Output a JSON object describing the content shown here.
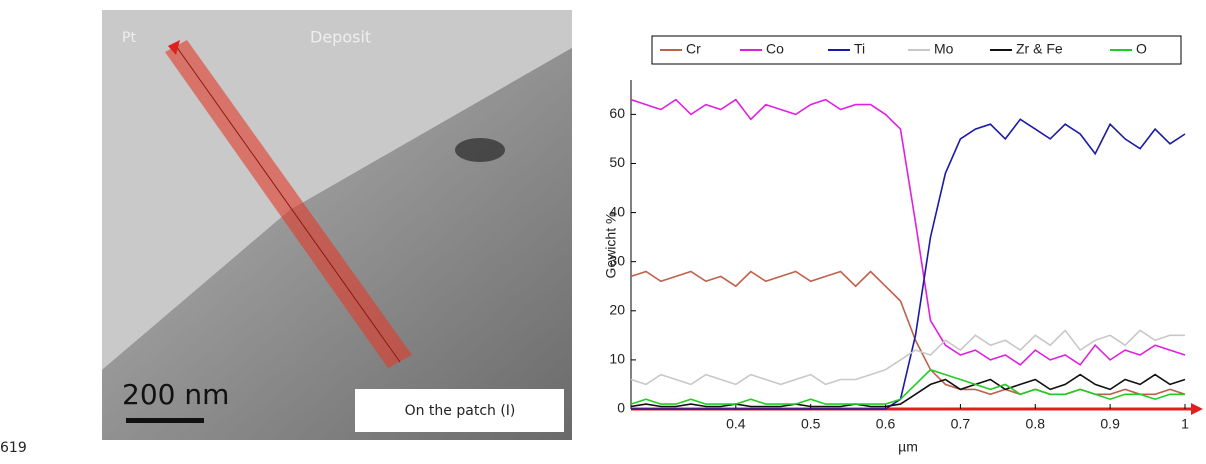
{
  "page_number": "619",
  "image": {
    "labels": [
      "Pt",
      "Deposit",
      "200 nm",
      "On the patch (I)"
    ]
  },
  "chart_data": {
    "type": "line",
    "x_label": "µm",
    "y_label": "Gewicht %",
    "x": [
      0.26,
      0.28,
      0.3,
      0.32,
      0.34,
      0.36,
      0.38,
      0.4,
      0.42,
      0.44,
      0.46,
      0.48,
      0.5,
      0.52,
      0.54,
      0.56,
      0.58,
      0.6,
      0.62,
      0.64,
      0.66,
      0.68,
      0.7,
      0.72,
      0.74,
      0.76,
      0.78,
      0.8,
      0.82,
      0.84,
      0.86,
      0.88,
      0.9,
      0.92,
      0.94,
      0.96,
      0.98,
      1.0
    ],
    "xlim": [
      0.26,
      1.0
    ],
    "ylim": [
      0,
      67
    ],
    "xticks": [
      0.4,
      0.5,
      0.6,
      0.7,
      0.8,
      0.9,
      1
    ],
    "yticks": [
      0,
      10,
      20,
      30,
      40,
      50,
      60
    ],
    "series": [
      {
        "name": "Cr",
        "color": "#c0604a",
        "values": [
          27,
          28,
          26,
          27,
          28,
          26,
          27,
          25,
          28,
          26,
          27,
          28,
          26,
          27,
          28,
          25,
          28,
          25,
          22,
          14,
          8,
          5,
          4,
          4,
          3,
          4,
          3,
          4,
          3,
          3,
          4,
          3,
          3,
          4,
          3,
          3,
          4,
          3
        ]
      },
      {
        "name": "Co",
        "color": "#e020e0",
        "values": [
          63,
          62,
          61,
          63,
          60,
          62,
          61,
          63,
          59,
          62,
          61,
          60,
          62,
          63,
          61,
          62,
          62,
          60,
          57,
          38,
          18,
          13,
          11,
          12,
          10,
          11,
          9,
          12,
          10,
          11,
          9,
          13,
          10,
          12,
          11,
          13,
          12,
          11
        ]
      },
      {
        "name": "Ti",
        "color": "#1a1aa8",
        "values": [
          0,
          0,
          0,
          0,
          0,
          0,
          0,
          0,
          0,
          0,
          0,
          0,
          0,
          0,
          0,
          0,
          0,
          0,
          2,
          15,
          35,
          48,
          55,
          57,
          58,
          55,
          59,
          57,
          55,
          58,
          56,
          52,
          58,
          55,
          53,
          57,
          54,
          56
        ]
      },
      {
        "name": "Mo",
        "color": "#c8c8c8",
        "values": [
          6,
          5,
          7,
          6,
          5,
          7,
          6,
          5,
          7,
          6,
          5,
          6,
          7,
          5,
          6,
          6,
          7,
          8,
          10,
          12,
          11,
          14,
          12,
          15,
          13,
          14,
          12,
          15,
          13,
          16,
          12,
          14,
          15,
          13,
          16,
          14,
          15,
          15
        ]
      },
      {
        "name": "Zr & Fe",
        "color": "#111111",
        "values": [
          0.5,
          1,
          0.5,
          0.5,
          1,
          0.5,
          0.5,
          1,
          0.5,
          0.5,
          0.5,
          1,
          0.5,
          0.5,
          0.5,
          1,
          0.5,
          0.5,
          1,
          3,
          5,
          6,
          4,
          5,
          6,
          4,
          5,
          6,
          4,
          5,
          7,
          5,
          4,
          6,
          5,
          7,
          5,
          6
        ]
      },
      {
        "name": "O",
        "color": "#22cc22",
        "values": [
          1,
          2,
          1,
          1,
          2,
          1,
          1,
          1,
          2,
          1,
          1,
          1,
          2,
          1,
          1,
          1,
          1,
          1,
          2,
          5,
          8,
          7,
          6,
          5,
          4,
          5,
          3,
          4,
          3,
          3,
          4,
          3,
          2,
          3,
          3,
          2,
          3,
          3
        ]
      }
    ]
  }
}
